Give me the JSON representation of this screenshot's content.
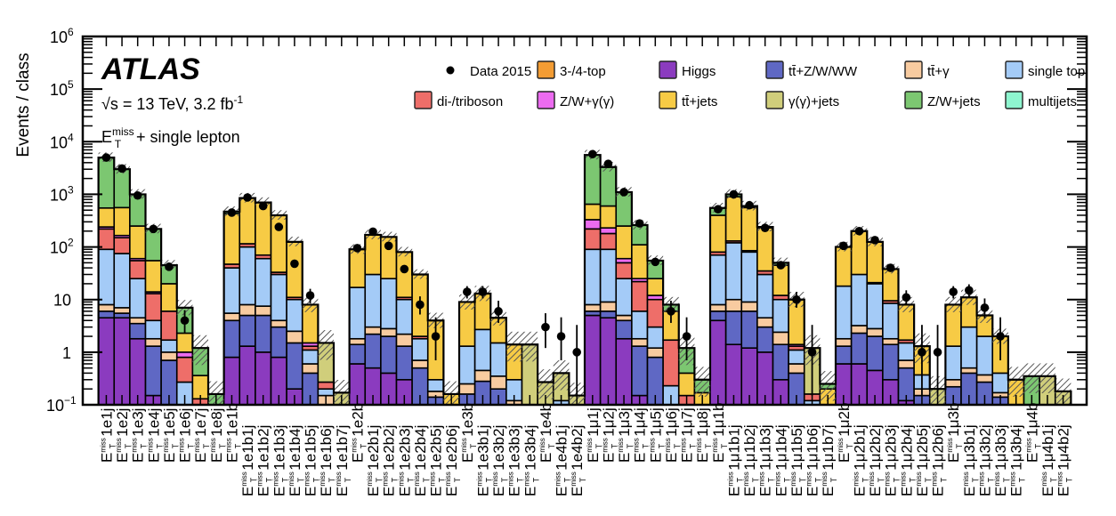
{
  "chart_data": {
    "type": "bar",
    "stacked": true,
    "yscale": "log",
    "ylabel": "Events / class",
    "xlabel": "",
    "ylim": [
      0.08,
      1000000
    ],
    "y_ticks": [
      {
        "value": 0.1,
        "base": "10",
        "exp": "−1"
      },
      {
        "value": 1,
        "base": "1",
        "exp": ""
      },
      {
        "value": 10,
        "base": "10",
        "exp": ""
      },
      {
        "value": 100,
        "base": "10",
        "exp": "2"
      },
      {
        "value": 1000,
        "base": "10",
        "exp": "3"
      },
      {
        "value": 10000,
        "base": "10",
        "exp": "4"
      },
      {
        "value": 100000,
        "base": "10",
        "exp": "5"
      },
      {
        "value": 1000000,
        "base": "10",
        "exp": "6"
      }
    ],
    "annotations": {
      "experiment": "ATLAS",
      "energy_prefix": "√s = 13 TeV, 3.2 fb",
      "energy_exp": "-1",
      "selection_base": "E",
      "selection_sup": "miss",
      "selection_sub": "T",
      "selection_rest": " + single lepton"
    },
    "legend_placement": "top-right",
    "legend": [
      {
        "key": "data",
        "label": "Data 2015",
        "type": "marker",
        "color": "#000000"
      },
      {
        "key": "fourtop",
        "label": "3-/4-top",
        "type": "box",
        "color": "#f39c33"
      },
      {
        "key": "higgs",
        "label": "Higgs",
        "type": "box",
        "color": "#8b3bbf"
      },
      {
        "key": "ttv",
        "label": "tt̄+Z/W/WW",
        "type": "box",
        "color": "#5f68c4"
      },
      {
        "key": "ttgamma",
        "label": "tt̄+γ",
        "type": "box",
        "color": "#f8cba0"
      },
      {
        "key": "singletop",
        "label": "single top",
        "type": "box",
        "color": "#a4cbf7"
      },
      {
        "key": "diboson",
        "label": "di-/triboson",
        "type": "box",
        "color": "#ee6e69"
      },
      {
        "key": "zwgamma",
        "label": "Z/W+γ(γ)",
        "type": "box",
        "color": "#ec6bf0"
      },
      {
        "key": "ttjets",
        "label": "tt̄+jets",
        "type": "box",
        "color": "#f7cb45"
      },
      {
        "key": "gammajets",
        "label": "γ(γ)+jets",
        "type": "box",
        "color": "#d0ce7b"
      },
      {
        "key": "zwjets",
        "label": "Z/W+jets",
        "type": "box",
        "color": "#7cc771"
      },
      {
        "key": "multijets",
        "label": "multijets",
        "type": "box",
        "color": "#8ef5cf"
      }
    ],
    "stack_order": [
      "higgs",
      "ttv",
      "ttgamma",
      "singletop",
      "diboson",
      "zwgamma",
      "ttjets",
      "gammajets",
      "zwjets"
    ],
    "categories": [
      {
        "lep": "e",
        "suffix": "1e1j"
      },
      {
        "lep": "e",
        "suffix": "1e2j"
      },
      {
        "lep": "e",
        "suffix": "1e3j"
      },
      {
        "lep": "e",
        "suffix": "1e4j"
      },
      {
        "lep": "e",
        "suffix": "1e5j"
      },
      {
        "lep": "e",
        "suffix": "1e6j"
      },
      {
        "lep": "e",
        "suffix": "1e7j"
      },
      {
        "lep": "e",
        "suffix": "1e8j"
      },
      {
        "lep": "e",
        "suffix": "1e1b"
      },
      {
        "lep": "e",
        "suffix": "1e1b1j"
      },
      {
        "lep": "e",
        "suffix": "1e1b2j"
      },
      {
        "lep": "e",
        "suffix": "1e1b3j"
      },
      {
        "lep": "e",
        "suffix": "1e1b4j"
      },
      {
        "lep": "e",
        "suffix": "1e1b5j"
      },
      {
        "lep": "e",
        "suffix": "1e1b6j"
      },
      {
        "lep": "e",
        "suffix": "1e1b7j"
      },
      {
        "lep": "e",
        "suffix": "1e2b"
      },
      {
        "lep": "e",
        "suffix": "1e2b1j"
      },
      {
        "lep": "e",
        "suffix": "1e2b2j"
      },
      {
        "lep": "e",
        "suffix": "1e2b3j"
      },
      {
        "lep": "e",
        "suffix": "1e2b4j"
      },
      {
        "lep": "e",
        "suffix": "1e2b5j"
      },
      {
        "lep": "e",
        "suffix": "1e2b6j"
      },
      {
        "lep": "e",
        "suffix": "1e3b"
      },
      {
        "lep": "e",
        "suffix": "1e3b1j"
      },
      {
        "lep": "e",
        "suffix": "1e3b2j"
      },
      {
        "lep": "e",
        "suffix": "1e3b3j"
      },
      {
        "lep": "e",
        "suffix": "1e3b4j"
      },
      {
        "lep": "e",
        "suffix": "1e4b"
      },
      {
        "lep": "e",
        "suffix": "1e4b1j"
      },
      {
        "lep": "e",
        "suffix": "1e4b2j"
      },
      {
        "lep": "mu",
        "suffix": "1μ1j"
      },
      {
        "lep": "mu",
        "suffix": "1μ2j"
      },
      {
        "lep": "mu",
        "suffix": "1μ3j"
      },
      {
        "lep": "mu",
        "suffix": "1μ4j"
      },
      {
        "lep": "mu",
        "suffix": "1μ5j"
      },
      {
        "lep": "mu",
        "suffix": "1μ6j"
      },
      {
        "lep": "mu",
        "suffix": "1μ7j"
      },
      {
        "lep": "mu",
        "suffix": "1μ8j"
      },
      {
        "lep": "mu",
        "suffix": "1μ1b"
      },
      {
        "lep": "mu",
        "suffix": "1μ1b1j"
      },
      {
        "lep": "mu",
        "suffix": "1μ1b2j"
      },
      {
        "lep": "mu",
        "suffix": "1μ1b3j"
      },
      {
        "lep": "mu",
        "suffix": "1μ1b4j"
      },
      {
        "lep": "mu",
        "suffix": "1μ1b5j"
      },
      {
        "lep": "mu",
        "suffix": "1μ1b6j"
      },
      {
        "lep": "mu",
        "suffix": "1μ1b7j"
      },
      {
        "lep": "mu",
        "suffix": "1μ2b"
      },
      {
        "lep": "mu",
        "suffix": "1μ2b1j"
      },
      {
        "lep": "mu",
        "suffix": "1μ2b2j"
      },
      {
        "lep": "mu",
        "suffix": "1μ2b3j"
      },
      {
        "lep": "mu",
        "suffix": "1μ2b4j"
      },
      {
        "lep": "mu",
        "suffix": "1μ2b5j"
      },
      {
        "lep": "mu",
        "suffix": "1μ2b6j"
      },
      {
        "lep": "mu",
        "suffix": "1μ3b"
      },
      {
        "lep": "mu",
        "suffix": "1μ3b1j"
      },
      {
        "lep": "mu",
        "suffix": "1μ3b2j"
      },
      {
        "lep": "mu",
        "suffix": "1μ3b3j"
      },
      {
        "lep": "mu",
        "suffix": "1μ3b4j"
      },
      {
        "lep": "mu",
        "suffix": "1μ4b"
      },
      {
        "lep": "mu",
        "suffix": "1μ4b1j"
      },
      {
        "lep": "mu",
        "suffix": "1μ4b2j"
      }
    ],
    "label_prefix_base": "E",
    "label_prefix_sup": "miss",
    "label_prefix_sub": "T",
    "stack_cumulative_note": "values below are cumulative stack tops (events) per category in stack_order; 0 = component absent",
    "stack_tops": [
      [
        4.5,
        6,
        8,
        90,
        220,
        240,
        550,
        550,
        5000
      ],
      [
        4.5,
        5.5,
        7,
        75,
        150,
        165,
        560,
        560,
        3000
      ],
      [
        1.8,
        3.5,
        4.5,
        25,
        55,
        60,
        250,
        250,
        1000
      ],
      [
        0.15,
        1.3,
        1.8,
        4,
        13,
        14,
        55,
        55,
        220
      ],
      [
        0.1,
        0.7,
        1.0,
        1.7,
        6,
        6,
        20,
        20,
        45
      ],
      [
        0,
        0.1,
        0.1,
        0.27,
        0.8,
        1.0,
        2.3,
        2.3,
        7
      ],
      [
        0,
        0,
        0,
        0,
        0.13,
        0.13,
        0.36,
        0.36,
        1.2
      ],
      [
        0,
        0,
        0,
        0,
        0,
        0,
        0,
        0,
        0.16
      ],
      [
        0.8,
        4,
        5.5,
        40,
        47,
        47,
        430,
        430,
        470
      ],
      [
        1.3,
        5,
        8,
        100,
        115,
        115,
        850,
        850,
        850
      ],
      [
        1.0,
        5,
        7.5,
        60,
        70,
        70,
        700,
        700,
        700
      ],
      [
        0.8,
        3,
        4,
        30,
        33,
        33,
        400,
        400,
        400
      ],
      [
        0.2,
        1.5,
        2.5,
        10,
        11,
        11,
        125,
        125,
        125
      ],
      [
        0.1,
        0.4,
        0.6,
        1.1,
        1.3,
        1.5,
        8,
        8,
        8
      ],
      [
        0,
        0.1,
        0.15,
        0.2,
        0.27,
        0.27,
        0.27,
        1.5,
        1.5
      ],
      [
        0,
        0,
        0,
        0,
        0,
        0,
        0,
        0.17,
        0.17
      ],
      [
        0.6,
        1.4,
        1.8,
        17,
        17,
        17,
        90,
        90,
        90
      ],
      [
        0.5,
        2.2,
        3,
        30,
        30,
        30,
        170,
        170,
        170
      ],
      [
        0.4,
        2.0,
        2.8,
        25,
        25,
        25,
        155,
        155,
        155
      ],
      [
        0.3,
        1.3,
        2.2,
        10,
        11,
        11,
        80,
        80,
        80
      ],
      [
        0.1,
        0.5,
        0.7,
        1.8,
        2.0,
        2.0,
        30,
        30,
        30
      ],
      [
        0,
        0.14,
        0.18,
        0.3,
        0.3,
        0.3,
        4,
        4,
        4
      ],
      [
        0,
        0,
        0,
        0.1,
        0.1,
        0.1,
        0.16,
        0.16,
        0.16
      ],
      [
        0,
        0.16,
        0.25,
        1.3,
        1.3,
        1.3,
        9,
        9,
        9
      ],
      [
        0,
        0.28,
        0.45,
        2.7,
        2.7,
        2.7,
        13,
        13,
        13
      ],
      [
        0.1,
        0.2,
        0.35,
        1.5,
        1.5,
        1.5,
        4.5,
        4.5,
        4.5
      ],
      [
        0,
        0.1,
        0.12,
        0.3,
        0.3,
        0.3,
        1.4,
        1.4,
        1.4
      ],
      [
        0,
        0,
        0.1,
        0.1,
        0.1,
        0.1,
        0.1,
        1.4,
        1.4
      ],
      [
        0,
        0,
        0,
        0,
        0,
        0,
        0,
        0.27,
        0.27
      ],
      [
        0,
        0,
        0,
        0.12,
        0.12,
        0.12,
        0.12,
        0.4,
        0.4
      ],
      [
        0,
        0,
        0,
        0,
        0,
        0,
        0,
        0.15,
        0.15
      ],
      [
        5,
        6,
        8,
        90,
        220,
        330,
        650,
        650,
        5600
      ],
      [
        4.5,
        6,
        9,
        90,
        180,
        230,
        600,
        600,
        3300
      ],
      [
        1.8,
        4,
        5,
        25,
        50,
        60,
        250,
        250,
        1100
      ],
      [
        0.15,
        1.3,
        1.8,
        6,
        22,
        25,
        110,
        110,
        260
      ],
      [
        0.1,
        0.8,
        1.2,
        3,
        10,
        12,
        25,
        25,
        55
      ],
      [
        0,
        0.1,
        0.1,
        0.23,
        1.7,
        1.7,
        6,
        6,
        8
      ],
      [
        0,
        0,
        0,
        0,
        0.15,
        0.15,
        0.4,
        0.4,
        1.2
      ],
      [
        0,
        0,
        0,
        0,
        0.1,
        0.1,
        0.17,
        0.17,
        0.3
      ],
      [
        4,
        6,
        8,
        70,
        80,
        80,
        400,
        400,
        550
      ],
      [
        1.4,
        6,
        10,
        120,
        130,
        130,
        900,
        900,
        1000
      ],
      [
        1.2,
        6,
        9,
        80,
        85,
        85,
        560,
        560,
        600
      ],
      [
        1.0,
        3,
        4.5,
        30,
        35,
        35,
        230,
        230,
        240
      ],
      [
        0.3,
        1.4,
        2.4,
        10,
        12,
        12,
        45,
        45,
        50
      ],
      [
        0.1,
        0.4,
        0.6,
        1.1,
        1.3,
        1.4,
        10,
        10,
        10
      ],
      [
        0,
        0.1,
        0.1,
        0.12,
        0.16,
        0.16,
        0.16,
        1.2,
        1.2
      ],
      [
        0,
        0,
        0,
        0,
        0,
        0,
        0.2,
        0.2,
        0.25
      ],
      [
        0.6,
        1.3,
        1.8,
        18,
        18,
        18,
        100,
        100,
        100
      ],
      [
        0.6,
        2.3,
        3.2,
        30,
        30,
        30,
        200,
        200,
        200
      ],
      [
        0.45,
        2.0,
        2.8,
        20,
        21,
        21,
        125,
        125,
        125
      ],
      [
        0.3,
        1.4,
        1.8,
        8.5,
        9.5,
        9.5,
        38,
        38,
        38
      ],
      [
        0.12,
        0.5,
        0.7,
        1.5,
        1.7,
        1.7,
        8,
        8,
        8
      ],
      [
        0,
        0.15,
        0.2,
        0.37,
        0.37,
        0.37,
        1.3,
        1.3,
        1.3
      ],
      [
        0,
        0,
        0,
        0,
        0,
        0,
        0,
        0.2,
        0.2
      ],
      [
        0,
        0.22,
        0.3,
        1.3,
        1.3,
        1.3,
        8,
        8,
        8
      ],
      [
        0.1,
        0.4,
        0.5,
        3,
        3,
        3,
        11,
        11,
        11
      ],
      [
        0.1,
        0.27,
        0.37,
        2,
        2,
        2,
        5,
        5,
        5
      ],
      [
        0,
        0.14,
        0.17,
        0.4,
        0.4,
        0.4,
        2,
        2,
        2
      ],
      [
        0,
        0,
        0,
        0,
        0,
        0,
        0.3,
        0.3,
        0.3
      ],
      [
        0,
        0,
        0,
        0,
        0,
        0,
        0,
        0,
        0.35
      ],
      [
        0,
        0,
        0,
        0.1,
        0.1,
        0.1,
        0.1,
        0.35,
        0.35
      ],
      [
        0,
        0,
        0,
        0,
        0,
        0,
        0,
        0.18,
        0.18
      ]
    ],
    "uncertainty_band_relative": 0.25,
    "data": [
      {
        "y": 5000,
        "lo": 4900,
        "hi": 5100
      },
      {
        "y": 3100,
        "lo": 3000,
        "hi": 3200
      },
      {
        "y": 950,
        "lo": 900,
        "hi": 1000
      },
      {
        "y": 220,
        "lo": 205,
        "hi": 235
      },
      {
        "y": 42,
        "lo": 36,
        "hi": 48
      },
      {
        "y": 4,
        "lo": 2.3,
        "hi": 6.3
      },
      {
        "y": null
      },
      {
        "y": null
      },
      {
        "y": 450,
        "lo": 430,
        "hi": 470
      },
      {
        "y": 870,
        "lo": 840,
        "hi": 900
      },
      {
        "y": 600,
        "lo": 575,
        "hi": 625
      },
      {
        "y": 240,
        "lo": 225,
        "hi": 255
      },
      {
        "y": 48,
        "lo": 42,
        "hi": 55
      },
      {
        "y": 12,
        "lo": 8.5,
        "hi": 16
      },
      {
        "y": null
      },
      {
        "y": null
      },
      {
        "y": 95,
        "lo": 86,
        "hi": 105
      },
      {
        "y": 195,
        "lo": 181,
        "hi": 210
      },
      {
        "y": 105,
        "lo": 95,
        "hi": 115
      },
      {
        "y": 38,
        "lo": 32,
        "hi": 45
      },
      {
        "y": 8,
        "lo": 5.2,
        "hi": 11.5
      },
      {
        "y": 2,
        "lo": 0.7,
        "hi": 4.6
      },
      {
        "y": null
      },
      {
        "y": 14,
        "lo": 10.5,
        "hi": 18
      },
      {
        "y": 14,
        "lo": 10.5,
        "hi": 18
      },
      {
        "y": 6,
        "lo": 3.6,
        "hi": 9.5
      },
      {
        "y": null
      },
      {
        "y": null
      },
      {
        "y": 3,
        "lo": 1.2,
        "hi": 5.5
      },
      {
        "y": 2,
        "lo": 0.7,
        "hi": 4.6
      },
      {
        "y": 1,
        "lo": 0.15,
        "hi": 3.3
      },
      {
        "y": 5800,
        "lo": 5700,
        "hi": 5900
      },
      {
        "y": 3800,
        "lo": 3700,
        "hi": 3900
      },
      {
        "y": 1100,
        "lo": 1050,
        "hi": 1150
      },
      {
        "y": 280,
        "lo": 265,
        "hi": 297
      },
      {
        "y": 52,
        "lo": 45,
        "hi": 60
      },
      {
        "y": 6,
        "lo": 3.6,
        "hi": 9.5
      },
      {
        "y": 2,
        "lo": 0.7,
        "hi": 4.6
      },
      {
        "y": null
      },
      {
        "y": 520,
        "lo": 497,
        "hi": 543
      },
      {
        "y": 1000,
        "lo": 968,
        "hi": 1032
      },
      {
        "y": 620,
        "lo": 595,
        "hi": 645
      },
      {
        "y": 230,
        "lo": 215,
        "hi": 245
      },
      {
        "y": 45,
        "lo": 39,
        "hi": 52
      },
      {
        "y": 10,
        "lo": 7,
        "hi": 14
      },
      {
        "y": 1,
        "lo": 0.15,
        "hi": 3.3
      },
      {
        "y": null
      },
      {
        "y": 105,
        "lo": 95,
        "hi": 115
      },
      {
        "y": 200,
        "lo": 186,
        "hi": 214
      },
      {
        "y": 135,
        "lo": 124,
        "hi": 147
      },
      {
        "y": 40,
        "lo": 34,
        "hi": 47
      },
      {
        "y": 11,
        "lo": 7.8,
        "hi": 15
      },
      {
        "y": 1,
        "lo": 0.15,
        "hi": 3.3
      },
      {
        "y": 1,
        "lo": 0.15,
        "hi": 3.3
      },
      {
        "y": 14,
        "lo": 10.5,
        "hi": 18
      },
      {
        "y": 15,
        "lo": 11.3,
        "hi": 19.5
      },
      {
        "y": 7,
        "lo": 4.4,
        "hi": 10.5
      },
      {
        "y": 2,
        "lo": 0.7,
        "hi": 4.6
      },
      {
        "y": null
      },
      {
        "y": null
      },
      {
        "y": null
      },
      {
        "y": null
      }
    ]
  }
}
